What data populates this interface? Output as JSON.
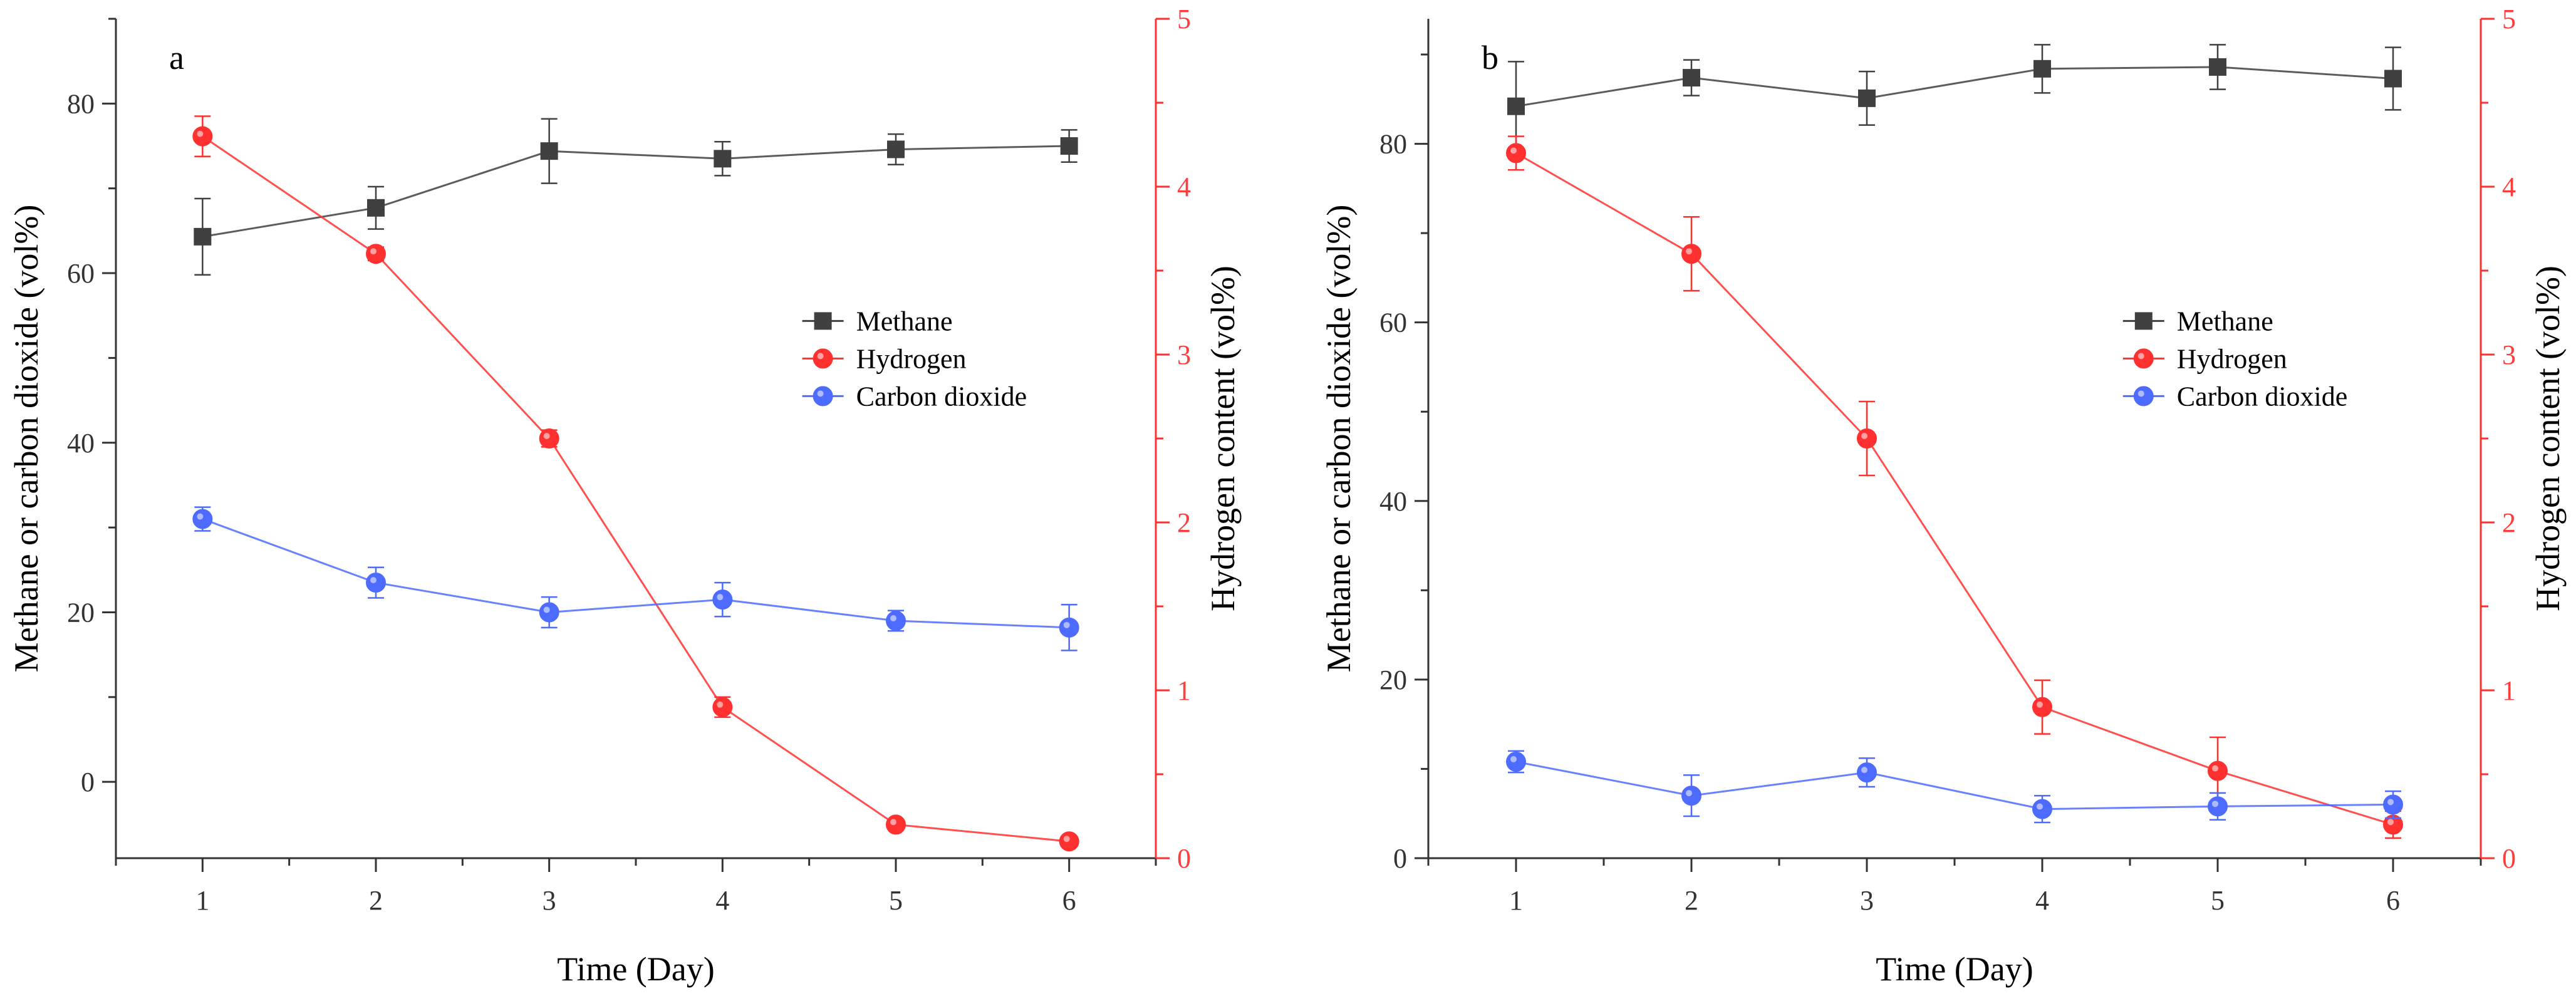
{
  "colors": {
    "methane": "#404040",
    "hydrogen": "#ff3030",
    "carbon_dioxide": "#4d6bff",
    "left_axis": "#333333",
    "right_axis": "#ff3030"
  },
  "chart_data": [
    {
      "type": "line",
      "panel_label": "a",
      "xlabel": "Time (Day)",
      "ylabel": "Methane or carbon dioxide (vol%)",
      "y2label": "Hydrogen content (vol%)",
      "x": [
        1,
        2,
        3,
        4,
        5,
        6
      ],
      "xticks": [
        "1",
        "2",
        "3",
        "4",
        "5",
        "6"
      ],
      "xlim": [
        0.5,
        6.5
      ],
      "ylim": [
        -9,
        90
      ],
      "yticks": [
        0,
        20,
        40,
        60,
        80
      ],
      "ytick_labels": [
        "0",
        "20",
        "40",
        "60",
        "80"
      ],
      "y2lim": [
        0,
        5
      ],
      "y2ticks": [
        0,
        1,
        2,
        3,
        4,
        5
      ],
      "y2tick_labels": [
        "0",
        "1",
        "2",
        "3",
        "4",
        "5"
      ],
      "legend_position": "center-right",
      "series": [
        {
          "name": "Methane",
          "axis": "left",
          "marker": "square",
          "values": [
            64.3,
            67.7,
            74.4,
            73.5,
            74.6,
            75.0
          ],
          "errors": [
            4.5,
            2.5,
            3.8,
            2.0,
            1.8,
            1.9
          ]
        },
        {
          "name": "Hydrogen",
          "axis": "right",
          "marker": "circle",
          "values": [
            4.3,
            3.6,
            2.5,
            0.9,
            0.2,
            0.1
          ],
          "errors": [
            0.12,
            0.04,
            0.05,
            0.06,
            0.03,
            0.02
          ]
        },
        {
          "name": "Carbon dioxide",
          "axis": "left",
          "marker": "circle",
          "values": [
            31.0,
            23.5,
            20.0,
            21.5,
            19.0,
            18.2
          ],
          "errors": [
            1.4,
            1.8,
            1.8,
            2.0,
            1.2,
            2.7
          ]
        }
      ]
    },
    {
      "type": "line",
      "panel_label": "b",
      "xlabel": "Time (Day)",
      "ylabel": "Methane or carbon dioxide (vol%)",
      "y2label": "Hydrogen content (vol%)",
      "x": [
        1,
        2,
        3,
        4,
        5,
        6
      ],
      "xticks": [
        "1",
        "2",
        "3",
        "4",
        "5",
        "6"
      ],
      "xlim": [
        0.5,
        6.5
      ],
      "ylim": [
        0,
        94
      ],
      "yticks": [
        0,
        20,
        40,
        60,
        80
      ],
      "ytick_labels": [
        "0",
        "20",
        "40",
        "60",
        "80"
      ],
      "y2lim": [
        0,
        5
      ],
      "y2ticks": [
        0,
        1,
        2,
        3,
        4,
        5
      ],
      "y2tick_labels": [
        "0",
        "1",
        "2",
        "3",
        "4",
        "5"
      ],
      "legend_position": "center-right",
      "series": [
        {
          "name": "Methane",
          "axis": "left",
          "marker": "square",
          "values": [
            84.2,
            87.4,
            85.1,
            88.4,
            88.6,
            87.3
          ],
          "errors": [
            5.0,
            2.0,
            3.0,
            2.7,
            2.5,
            3.5
          ]
        },
        {
          "name": "Hydrogen",
          "axis": "right",
          "marker": "circle",
          "values": [
            4.2,
            3.6,
            2.5,
            0.9,
            0.52,
            0.2
          ],
          "errors": [
            0.1,
            0.22,
            0.22,
            0.16,
            0.2,
            0.08
          ]
        },
        {
          "name": "Carbon dioxide",
          "axis": "left",
          "marker": "circle",
          "values": [
            10.8,
            7.0,
            9.6,
            5.5,
            5.8,
            6.0
          ],
          "errors": [
            1.2,
            2.3,
            1.6,
            1.5,
            1.5,
            1.5
          ]
        }
      ]
    }
  ]
}
